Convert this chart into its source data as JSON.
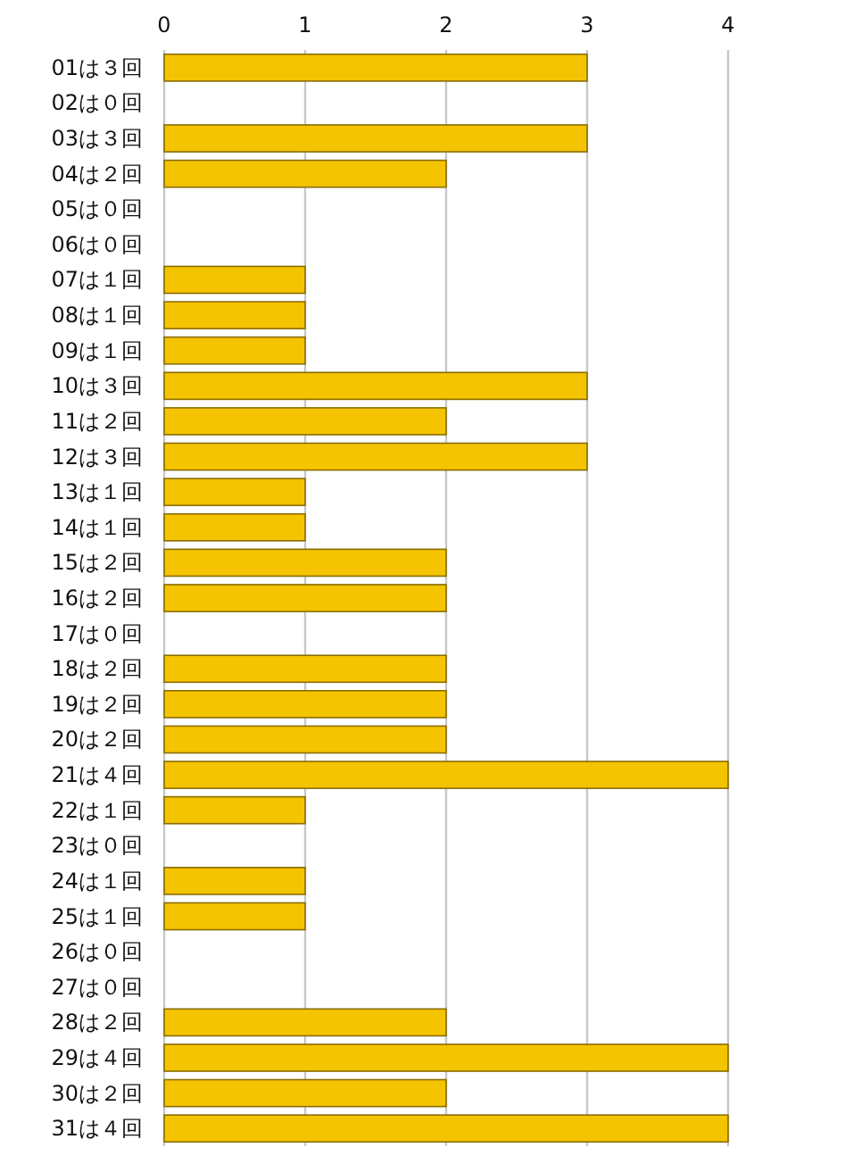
{
  "chart_data": {
    "type": "bar",
    "orientation": "horizontal",
    "categories": [
      "01は３回",
      "02は０回",
      "03は３回",
      "04は２回",
      "05は０回",
      "06は０回",
      "07は１回",
      "08は１回",
      "09は１回",
      "10は３回",
      "11は２回",
      "12は３回",
      "13は１回",
      "14は１回",
      "15は２回",
      "16は２回",
      "17は０回",
      "18は２回",
      "19は２回",
      "20は２回",
      "21は４回",
      "22は１回",
      "23は０回",
      "24は１回",
      "25は１回",
      "26は０回",
      "27は０回",
      "28は２回",
      "29は４回",
      "30は２回",
      "31は４回"
    ],
    "series": [
      {
        "color": "#f5c400",
        "values": [
          3,
          0,
          3,
          2,
          0,
          0,
          1,
          1,
          1,
          3,
          2,
          3,
          1,
          1,
          2,
          2,
          0,
          2,
          2,
          2,
          4,
          1,
          0,
          1,
          1,
          0,
          0,
          2,
          4,
          2,
          4
        ]
      }
    ],
    "xlim": [
      0,
      4
    ],
    "xticks": [
      0,
      1,
      2,
      3,
      4
    ],
    "grid": "x"
  }
}
